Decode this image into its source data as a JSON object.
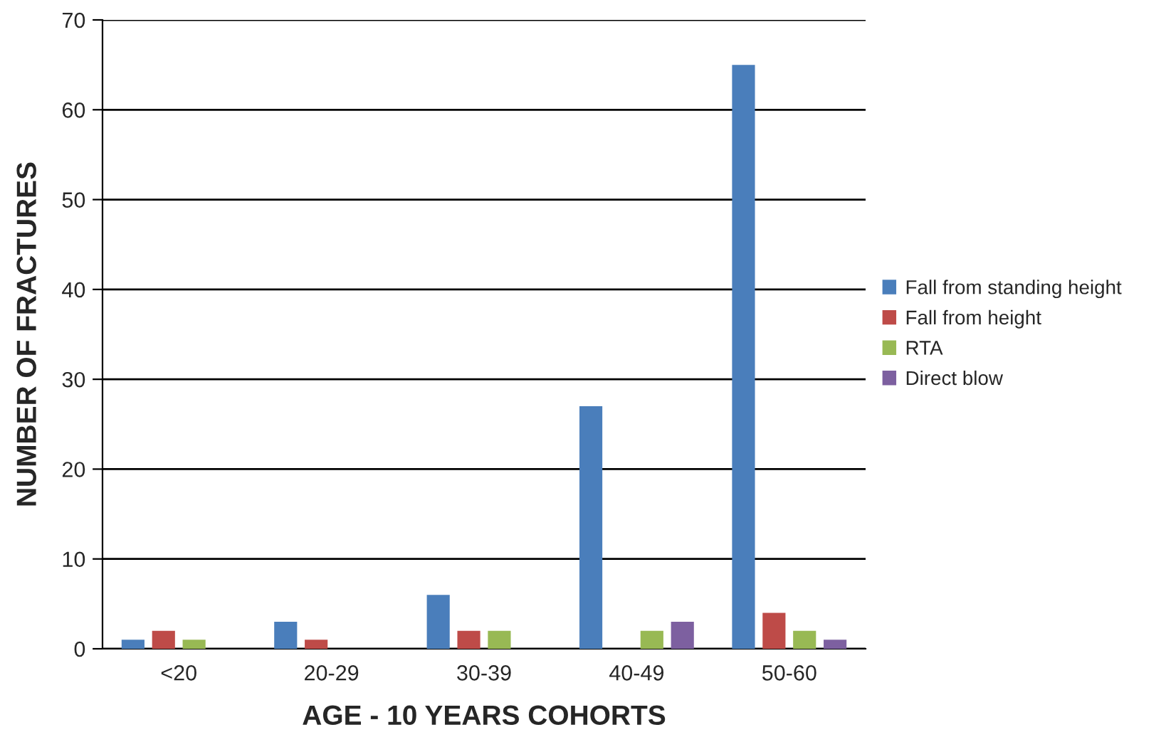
{
  "chart_data": {
    "type": "bar",
    "xlabel": "AGE - 10 YEARS COHORTS",
    "ylabel": "NUMBER OF FRACTURES",
    "categories": [
      "<20",
      "20-29",
      "30-39",
      "40-49",
      "50-60"
    ],
    "series": [
      {
        "name": "Fall from standing height",
        "color": "#4a7ebb",
        "values": [
          1,
          3,
          6,
          27,
          65
        ]
      },
      {
        "name": "Fall from height",
        "color": "#be4b48",
        "values": [
          2,
          1,
          2,
          null,
          4
        ]
      },
      {
        "name": "RTA",
        "color": "#98b954",
        "values": [
          1,
          null,
          2,
          2,
          2
        ]
      },
      {
        "name": "Direct blow",
        "color": "#7d60a0",
        "values": [
          null,
          null,
          null,
          3,
          1
        ]
      }
    ],
    "ylim": [
      0,
      70
    ],
    "yticks": [
      0,
      10,
      20,
      30,
      40,
      50,
      60,
      70
    ],
    "grid": "y",
    "legend": "right"
  }
}
